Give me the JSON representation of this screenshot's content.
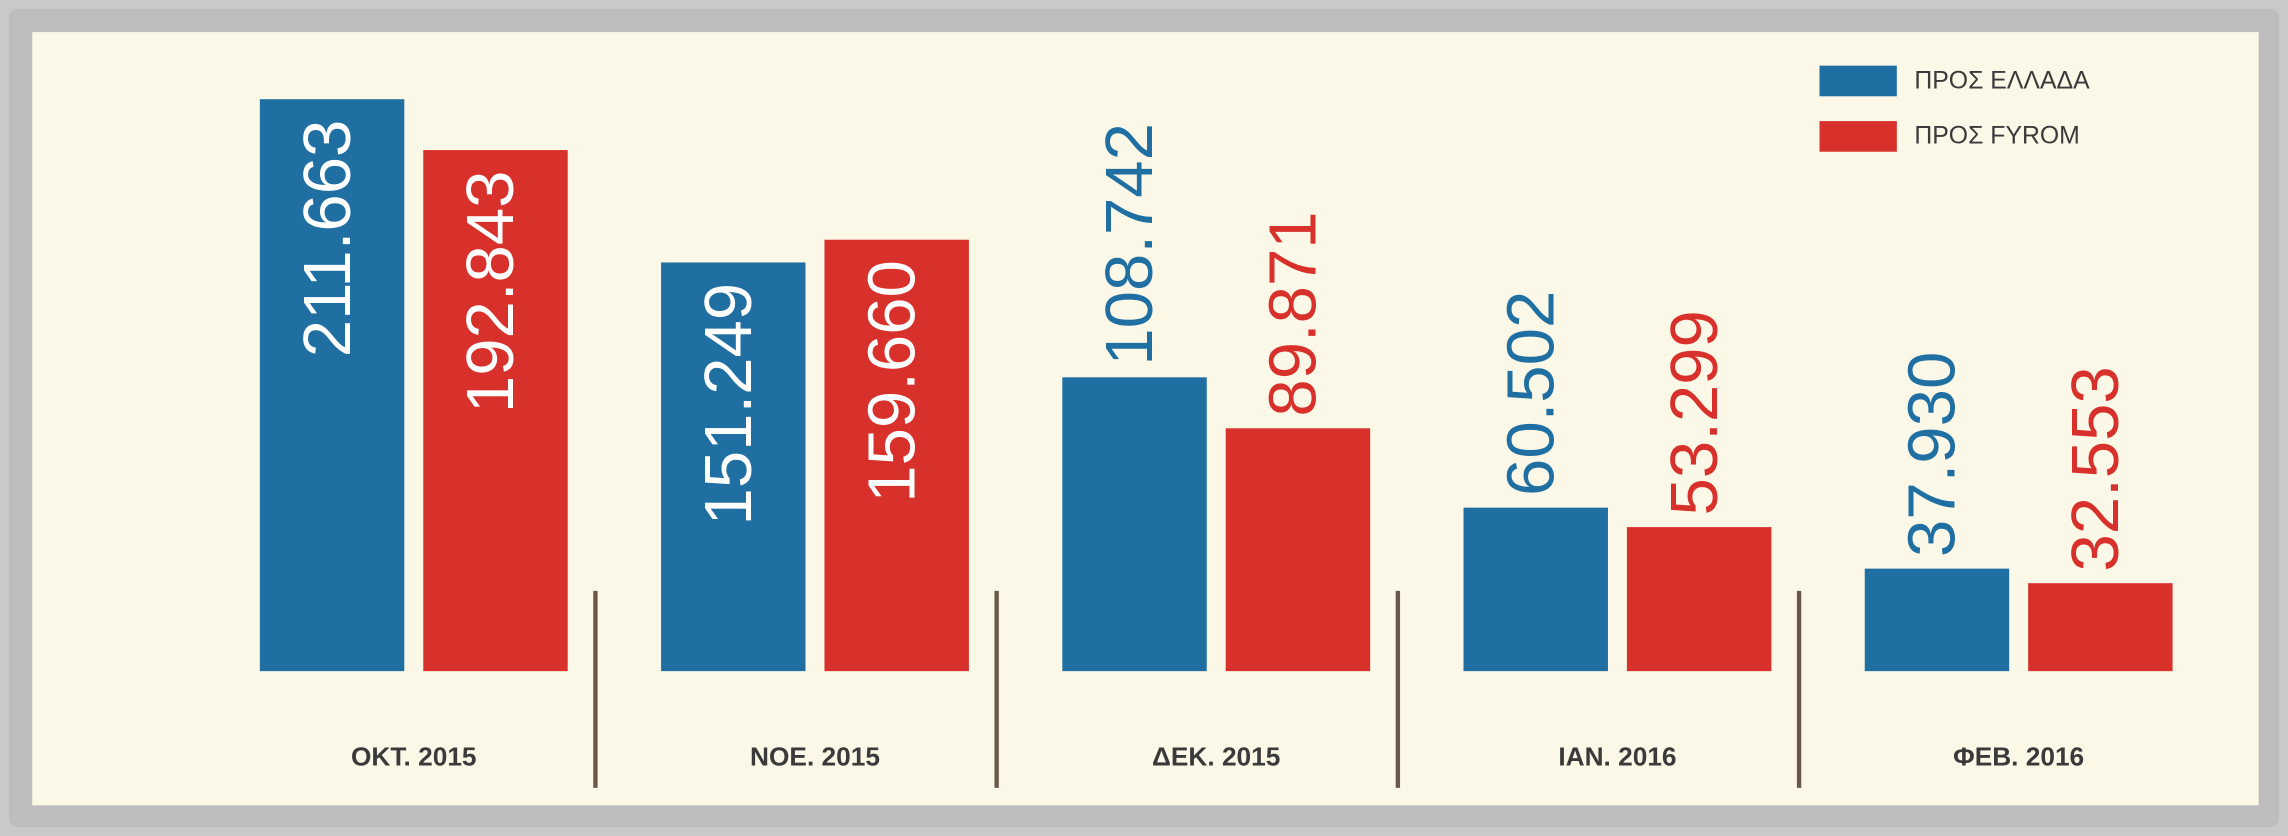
{
  "chart_data": {
    "type": "bar",
    "categories": [
      "ΟΚΤ. 2015",
      "ΝΟΕ. 2015",
      "ΔΕΚ. 2015",
      "ΙΑΝ. 2016",
      "ΦΕΒ. 2016"
    ],
    "series": [
      {
        "name": "ΠΡΟΣ ΕΛΛΑΔΑ",
        "color": "#1f6fa3",
        "values": [
          211663,
          151249,
          108742,
          60502,
          37930
        ],
        "value_labels": [
          "211.663",
          "151.249",
          "108.742",
          "60.502",
          "37.930"
        ]
      },
      {
        "name": "ΠΡΟΣ FYROM",
        "color": "#d8302b",
        "values": [
          192843,
          159660,
          89871,
          53299,
          32553
        ],
        "value_labels": [
          "192.843",
          "159.660",
          "89.871",
          "53.299",
          "32.553"
        ]
      }
    ]
  }
}
